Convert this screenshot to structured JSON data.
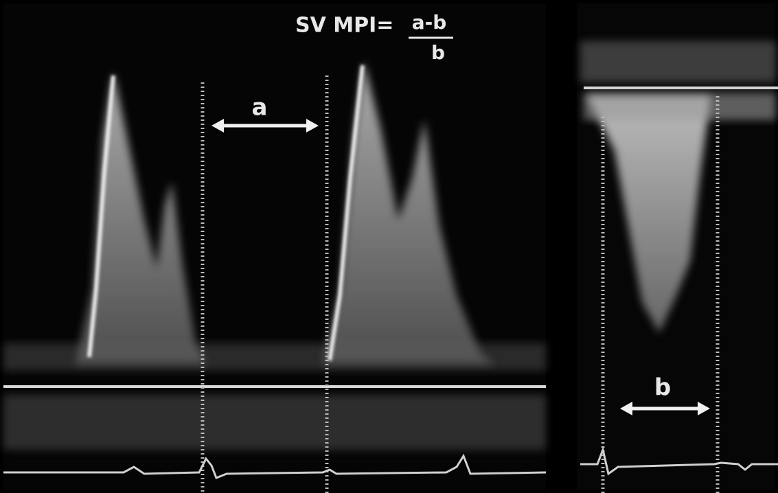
{
  "formula": {
    "prefix": "SV MPI=",
    "numerator": "a-b",
    "denominator": "b"
  },
  "labels": {
    "interval_a": "a",
    "interval_b": "b"
  }
}
